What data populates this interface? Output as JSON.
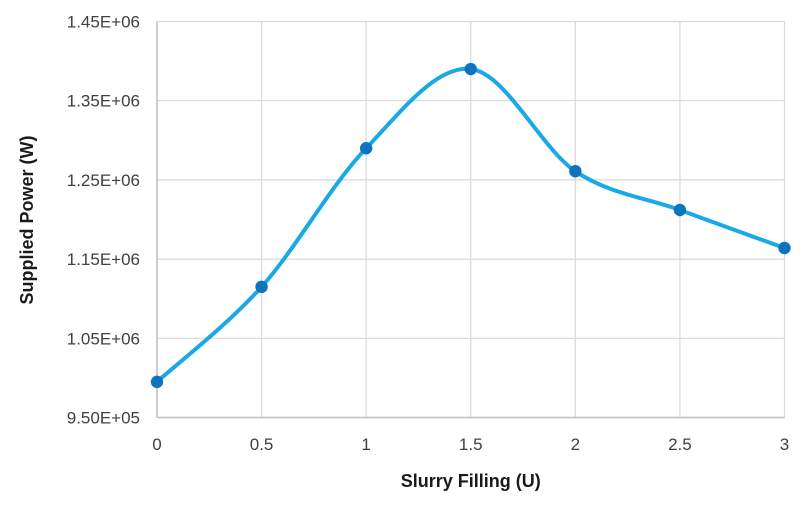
{
  "window": {
    "background": "#FFFFFF"
  },
  "chart_data": {
    "type": "line",
    "title": "",
    "xlabel": "Slurry Filling (U)",
    "ylabel": "Supplied Power (W)",
    "x": [
      0,
      0.5,
      1,
      1.5,
      2,
      2.5,
      3
    ],
    "series": [
      {
        "name": "Supplied Power",
        "values": [
          995000,
          1115000,
          1290000,
          1390000,
          1261000,
          1212000,
          1164000
        ]
      }
    ],
    "xlim": [
      0,
      3
    ],
    "ylim": [
      950000,
      1450000
    ],
    "x_tick_values": [
      0,
      0.5,
      1,
      1.5,
      2,
      2.5,
      3
    ],
    "x_tick_labels": [
      "0",
      "0.5",
      "1",
      "1.5",
      "2",
      "2.5",
      "3"
    ],
    "y_tick_values": [
      950000,
      1050000,
      1150000,
      1250000,
      1350000,
      1450000
    ],
    "y_tick_labels": [
      "9.50E+05",
      "1.05E+06",
      "1.15E+06",
      "1.25E+06",
      "1.35E+06",
      "1.45E+06"
    ],
    "grid": true,
    "smooth": true,
    "marker": "circle",
    "legend": "none",
    "colors": {
      "line": "#1BA8E6",
      "marker": "#0E74BE",
      "gridline": "#D9D9D9",
      "axis_line": "#BFBFBF",
      "tick_text": "#404040",
      "axis_title_text": "#1A1A1A",
      "background": "#FFFFFF"
    }
  }
}
